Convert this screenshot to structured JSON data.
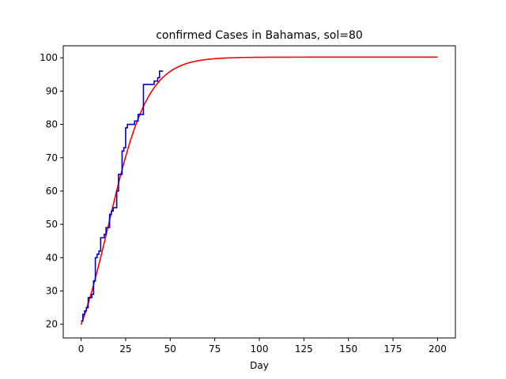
{
  "chart_data": {
    "type": "line",
    "title": "confirmed Cases in Bahamas, sol=80",
    "xlabel": "Day",
    "ylabel": "",
    "xlim": [
      -10,
      210
    ],
    "ylim": [
      15.9,
      103.6
    ],
    "xticks": [
      0,
      25,
      50,
      75,
      100,
      125,
      150,
      175,
      200
    ],
    "yticks": [
      20,
      30,
      40,
      50,
      60,
      70,
      80,
      90,
      100
    ],
    "grid": false,
    "series": [
      {
        "color": "#0000cc",
        "points": [
          [
            0,
            21
          ],
          [
            1,
            23
          ],
          [
            2,
            24
          ],
          [
            3,
            25
          ],
          [
            4,
            28
          ],
          [
            5,
            28
          ],
          [
            6,
            29
          ],
          [
            7,
            33
          ],
          [
            8,
            40
          ],
          [
            9,
            41
          ],
          [
            10,
            42
          ],
          [
            11,
            46
          ],
          [
            12,
            46
          ],
          [
            13,
            47
          ],
          [
            14,
            49
          ],
          [
            15,
            49
          ],
          [
            16,
            53
          ],
          [
            17,
            54
          ],
          [
            18,
            55
          ],
          [
            19,
            55
          ],
          [
            20,
            60
          ],
          [
            21,
            65
          ],
          [
            22,
            65
          ],
          [
            23,
            72
          ],
          [
            24,
            73
          ],
          [
            25,
            79
          ],
          [
            26,
            80
          ],
          [
            27,
            80
          ],
          [
            28,
            80
          ],
          [
            29,
            80
          ],
          [
            30,
            81
          ],
          [
            31,
            81
          ],
          [
            32,
            83
          ],
          [
            33,
            83
          ],
          [
            34,
            83
          ],
          [
            35,
            92
          ],
          [
            36,
            92
          ],
          [
            37,
            92
          ],
          [
            38,
            92
          ],
          [
            39,
            92
          ],
          [
            40,
            92
          ],
          [
            41,
            93
          ],
          [
            42,
            93
          ],
          [
            43,
            94
          ],
          [
            44,
            96
          ],
          [
            45,
            96
          ],
          [
            46,
            96
          ]
        ]
      },
      {
        "color": "#ff0000",
        "model": {
          "type": "logistic",
          "K": 100.2,
          "r": 0.09,
          "t0": 15.5
        }
      }
    ]
  }
}
